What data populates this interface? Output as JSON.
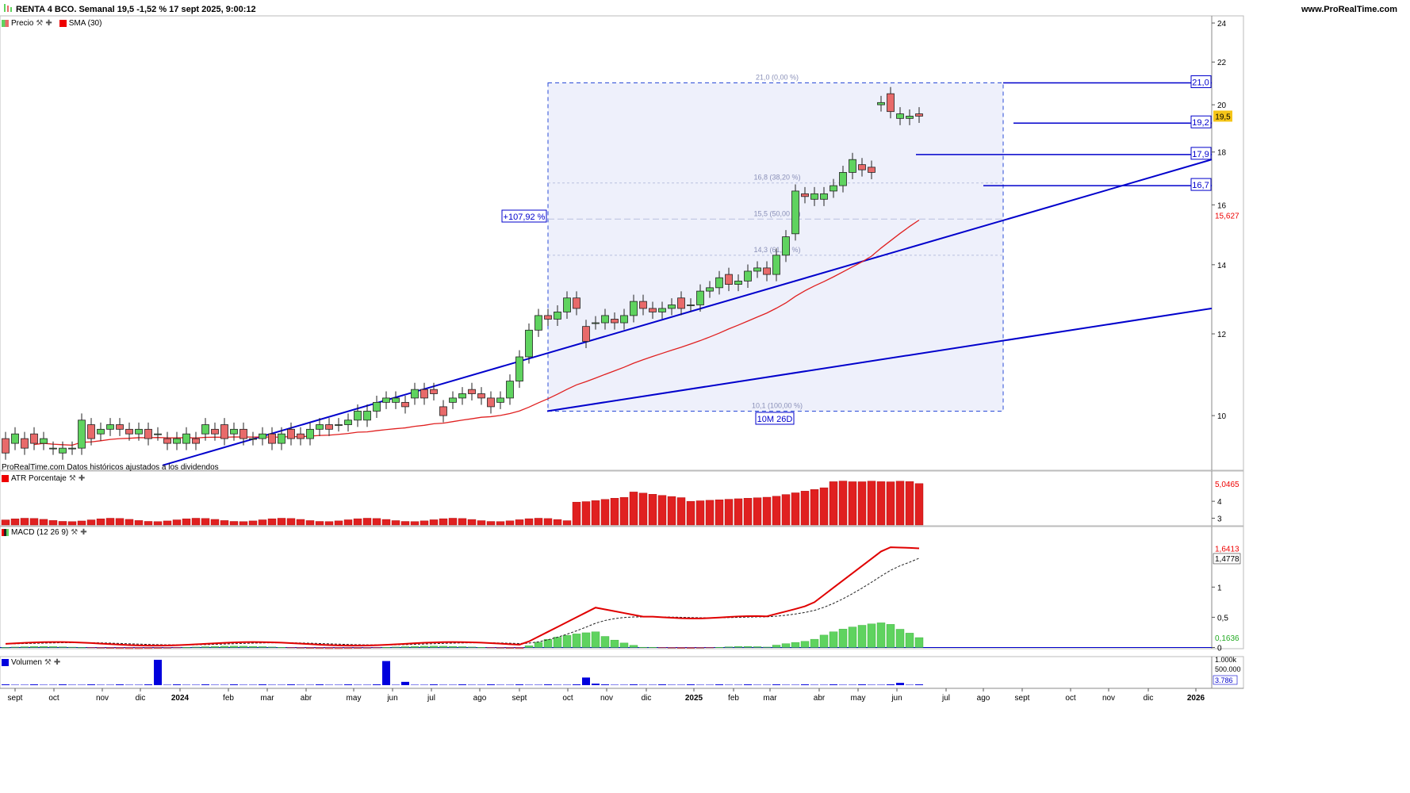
{
  "header": {
    "title": "RENTA 4 BCO. Semanal 19,5 -1,52 % 17 sept 2025, 9:00:12",
    "site": "www.ProRealTime.com"
  },
  "panels": {
    "price": {
      "legend_price": "Precio",
      "legend_sma": "SMA (30)",
      "footer_note": "ProRealTime.com Datos históricos ajustados a los dividendos"
    },
    "atr": {
      "legend": "ATR Porcentaje",
      "label_value": "5,0465"
    },
    "macd": {
      "legend": "MACD (12 26 9)",
      "label_macd": "1,6413",
      "label_signal": "1,4778",
      "label_hist": "0,1636"
    },
    "volume": {
      "legend": "Volumen",
      "label_value": "3.786"
    }
  },
  "colors": {
    "up": "#5fd35f",
    "down": "#e86a6a",
    "sma": "#e02020",
    "trend": "#0000cc",
    "atr": "#e02020",
    "macd": "#e00000",
    "signal": "#222222",
    "hist_pos": "#5fd35f",
    "hist_neg": "#e86a6a",
    "vol": "#0000dd",
    "fib_fill": "#eef0fb"
  },
  "price_axis": {
    "ticks": [
      "24",
      "22",
      "20",
      "18",
      "16",
      "14",
      "12",
      "10"
    ],
    "current": "19,5",
    "sma_value": "15,627"
  },
  "atr_axis": {
    "ticks": [
      "4",
      "3"
    ]
  },
  "macd_axis": {
    "ticks": [
      "1",
      "0,5",
      "0"
    ]
  },
  "vol_axis": {
    "ticks": [
      "1.000k",
      "500.000"
    ]
  },
  "x_labels": [
    "sept",
    "oct",
    "nov",
    "dic",
    "2024",
    "feb",
    "mar",
    "abr",
    "may",
    "jun",
    "jul",
    "ago",
    "sept",
    "oct",
    "nov",
    "dic",
    "2025",
    "feb",
    "mar",
    "abr",
    "may",
    "jun",
    "jul",
    "ago",
    "sept",
    "oct",
    "nov",
    "dic",
    "2026"
  ],
  "fibonacci": {
    "levels": [
      "21,0 (0,00 %)",
      "16,8 (38,20 %)",
      "15,5 (50,00 %)",
      "14,3 (61,80 %)",
      "10,1 (100,00 %)"
    ],
    "change_label": "+107,92 %",
    "duration_label": "10M 26D"
  },
  "horizontal_levels": [
    "21,0",
    "19,2",
    "17,9",
    "16,7"
  ],
  "chart_data": {
    "type": "candlestick",
    "open": [
      9.5,
      9.4,
      9.5,
      9.6,
      9.4,
      9.3,
      9.2,
      9.3,
      9.3,
      9.8,
      9.6,
      9.7,
      9.8,
      9.7,
      9.6,
      9.7,
      9.6,
      9.5,
      9.4,
      9.4,
      9.5,
      9.6,
      9.7,
      9.8,
      9.6,
      9.7,
      9.5,
      9.5,
      9.6,
      9.4,
      9.7,
      9.6,
      9.5,
      9.7,
      9.8,
      9.8,
      9.8,
      9.9,
      9.9,
      10.1,
      10.3,
      10.3,
      10.3,
      10.4,
      10.6,
      10.6,
      10.2,
      10.3,
      10.4,
      10.6,
      10.5,
      10.4,
      10.3,
      10.4,
      10.8,
      11.4,
      12.1,
      12.5,
      12.4,
      12.6,
      13.0,
      12.2,
      12.3,
      12.3,
      12.4,
      12.3,
      12.5,
      12.9,
      12.7,
      12.6,
      12.7,
      13.0,
      12.8,
      12.8,
      13.2,
      13.3,
      13.7,
      13.4,
      13.5,
      13.8,
      13.9,
      13.7,
      14.3,
      15.0,
      16.4,
      16.2,
      16.2,
      16.5,
      16.7,
      17.2,
      17.5,
      17.4,
      20.0,
      20.5,
      19.4,
      19.4,
      19.6
    ],
    "close": [
      9.2,
      9.6,
      9.3,
      9.4,
      9.5,
      9.3,
      9.3,
      9.3,
      9.9,
      9.5,
      9.7,
      9.8,
      9.7,
      9.6,
      9.7,
      9.5,
      9.6,
      9.4,
      9.5,
      9.6,
      9.4,
      9.8,
      9.6,
      9.5,
      9.7,
      9.5,
      9.5,
      9.6,
      9.4,
      9.6,
      9.5,
      9.5,
      9.7,
      9.8,
      9.7,
      9.8,
      9.9,
      10.1,
      10.1,
      10.3,
      10.4,
      10.4,
      10.2,
      10.6,
      10.4,
      10.5,
      10.0,
      10.4,
      10.5,
      10.5,
      10.4,
      10.2,
      10.4,
      10.8,
      11.4,
      12.1,
      12.5,
      12.4,
      12.6,
      13.0,
      12.7,
      11.8,
      12.3,
      12.5,
      12.3,
      12.5,
      12.9,
      12.7,
      12.6,
      12.7,
      12.8,
      12.7,
      12.8,
      13.2,
      13.3,
      13.6,
      13.4,
      13.5,
      13.8,
      13.9,
      13.7,
      14.3,
      14.9,
      16.5,
      16.3,
      16.4,
      16.4,
      16.7,
      17.2,
      17.7,
      17.3,
      17.2,
      20.1,
      19.7,
      19.6,
      19.5,
      19.5
    ],
    "sma_end": 15.627,
    "atr_last": 5.0465,
    "macd_last": 1.6413,
    "signal_last": 1.4778,
    "hist_last": 0.1636,
    "volume_last": 3786,
    "y_range": [
      8.9,
      24.3
    ],
    "x_range": [
      "sept 2023",
      "ene 2026"
    ]
  }
}
